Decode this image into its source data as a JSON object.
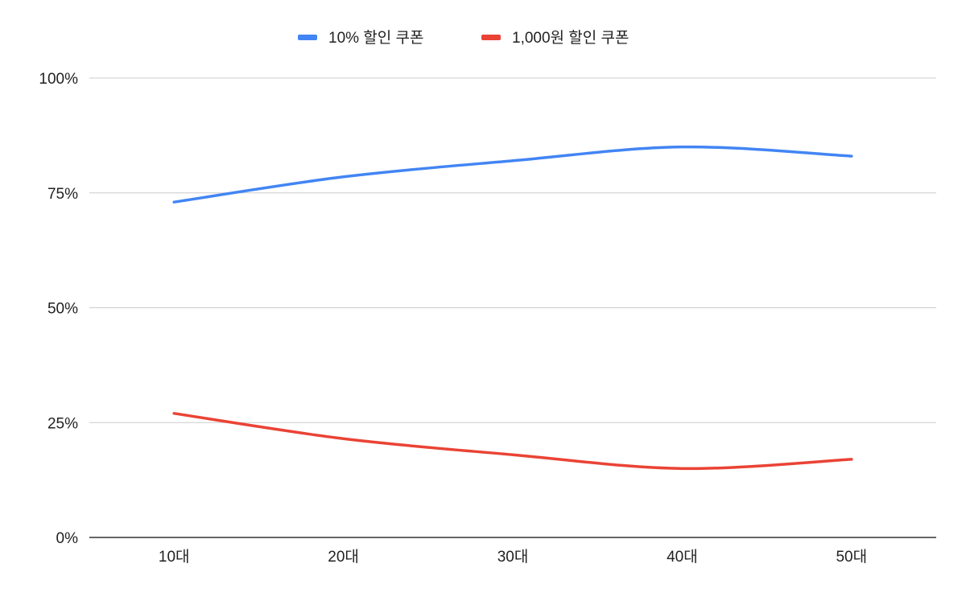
{
  "chart_data": {
    "type": "line",
    "title": "",
    "xlabel": "",
    "ylabel": "",
    "categories": [
      "10대",
      "20대",
      "30대",
      "40대",
      "50대"
    ],
    "series": [
      {
        "name": "10% 할인 쿠폰",
        "color": "#4285f4",
        "values": [
          73,
          78.5,
          82,
          85,
          83
        ]
      },
      {
        "name": "1,000원 할인 쿠폰",
        "color": "#ea4335",
        "values": [
          27,
          21.5,
          18,
          15,
          17
        ]
      }
    ],
    "ylim": [
      0,
      100
    ],
    "yticks": [
      "0%",
      "25%",
      "50%",
      "75%",
      "100%"
    ],
    "smooth": true,
    "grid": true,
    "legend": "top-center"
  }
}
